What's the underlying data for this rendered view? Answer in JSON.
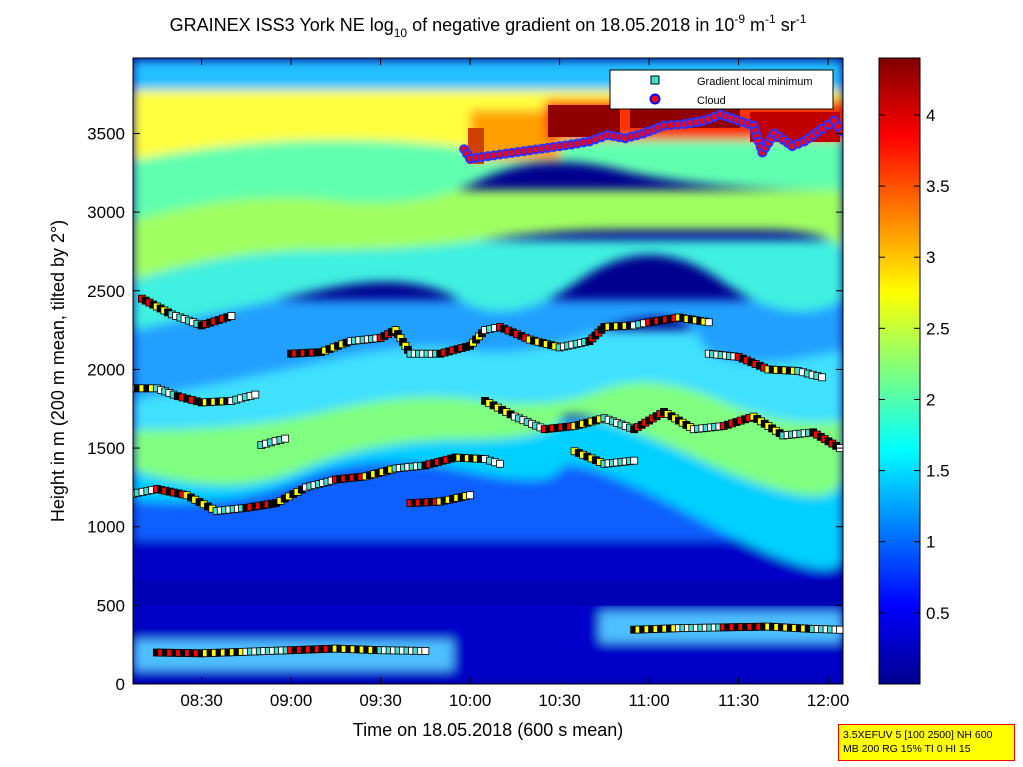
{
  "chart_data": {
    "type": "heatmap",
    "title_parts": [
      "GRAINEX ISS3 York NE log",
      "10",
      " of negative gradient on 18.05.2018 in 10",
      "-9",
      " m",
      "-1",
      " sr",
      "-1"
    ],
    "xlabel": "Time on 18.05.2018 (600 s mean)",
    "ylabel": "Height in m (200 m mean, tilted by 2°)",
    "x_range": [
      "08:07",
      "12:05"
    ],
    "ylim": [
      0,
      3980
    ],
    "x_ticks": [
      "08:30",
      "09:00",
      "09:30",
      "10:00",
      "10:30",
      "11:00",
      "11:30",
      "12:00"
    ],
    "y_ticks": [
      0,
      500,
      1000,
      1500,
      2000,
      2500,
      3000,
      3500
    ],
    "colorbar": {
      "range": [
        0,
        4.4
      ],
      "ticks": [
        0.5,
        1,
        1.5,
        2,
        2.5,
        3,
        3.5,
        4
      ],
      "colormap": "jet"
    },
    "legend": {
      "placement": "top-right",
      "entries": [
        {
          "label": "Gradient local minimum",
          "marker": "square",
          "color": "#40e0d0"
        },
        {
          "label": "Cloud",
          "marker": "circle",
          "color": "#ff0000",
          "edge": "#0000ff"
        }
      ]
    },
    "layers": [
      {
        "name": "",
        "points": [
          [
            "08:15",
            200
          ],
          [
            "08:30",
            195
          ],
          [
            "08:45",
            205
          ],
          [
            "09:00",
            215
          ],
          [
            "09:15",
            225
          ],
          [
            "09:30",
            215
          ],
          [
            "09:45",
            210
          ]
        ]
      },
      {
        "name": "",
        "points": [
          [
            "10:55",
            345
          ],
          [
            "11:10",
            355
          ],
          [
            "11:25",
            360
          ],
          [
            "11:40",
            365
          ],
          [
            "11:55",
            350
          ],
          [
            "12:04",
            345
          ]
        ]
      },
      {
        "name": "",
        "points": [
          [
            "08:07",
            1210
          ],
          [
            "08:15",
            1240
          ],
          [
            "08:25",
            1200
          ],
          [
            "08:35",
            1100
          ],
          [
            "08:45",
            1120
          ],
          [
            "08:55",
            1150
          ],
          [
            "09:05",
            1250
          ],
          [
            "09:15",
            1300
          ],
          [
            "09:25",
            1320
          ],
          [
            "09:35",
            1370
          ],
          [
            "09:45",
            1390
          ],
          [
            "09:55",
            1440
          ],
          [
            "10:05",
            1430
          ],
          [
            "10:10",
            1400
          ]
        ]
      },
      {
        "name": "",
        "points": [
          [
            "09:40",
            1150
          ],
          [
            "09:50",
            1160
          ],
          [
            "10:00",
            1200
          ]
        ]
      },
      {
        "name": "",
        "points": [
          [
            "08:07",
            1880
          ],
          [
            "08:15",
            1880
          ],
          [
            "08:22",
            1830
          ],
          [
            "08:30",
            1790
          ],
          [
            "08:40",
            1800
          ],
          [
            "08:48",
            1840
          ]
        ]
      },
      {
        "name": "",
        "points": [
          [
            "08:50",
            1520
          ],
          [
            "08:58",
            1560
          ]
        ]
      },
      {
        "name": "",
        "points": [
          [
            "09:00",
            2100
          ],
          [
            "09:10",
            2110
          ],
          [
            "09:20",
            2180
          ],
          [
            "09:30",
            2200
          ],
          [
            "09:35",
            2250
          ],
          [
            "09:40",
            2100
          ],
          [
            "09:50",
            2100
          ],
          [
            "10:00",
            2150
          ],
          [
            "10:05",
            2250
          ],
          [
            "10:10",
            2270
          ],
          [
            "10:20",
            2190
          ],
          [
            "10:30",
            2140
          ],
          [
            "10:40",
            2180
          ],
          [
            "10:45",
            2270
          ],
          [
            "10:55",
            2280
          ],
          [
            "11:00",
            2300
          ],
          [
            "11:10",
            2330
          ],
          [
            "11:20",
            2300
          ]
        ]
      },
      {
        "name": "",
        "points": [
          [
            "10:05",
            1800
          ],
          [
            "10:15",
            1700
          ],
          [
            "10:25",
            1620
          ],
          [
            "10:35",
            1640
          ],
          [
            "10:45",
            1690
          ],
          [
            "10:55",
            1620
          ],
          [
            "11:05",
            1730
          ],
          [
            "11:15",
            1620
          ],
          [
            "11:25",
            1640
          ],
          [
            "11:35",
            1700
          ],
          [
            "11:45",
            1580
          ],
          [
            "11:55",
            1600
          ],
          [
            "12:04",
            1500
          ]
        ]
      },
      {
        "name": "",
        "points": [
          [
            "11:20",
            2100
          ],
          [
            "11:30",
            2080
          ],
          [
            "11:40",
            2000
          ],
          [
            "11:50",
            1990
          ],
          [
            "11:58",
            1950
          ]
        ]
      },
      {
        "name": "",
        "points": [
          [
            "08:10",
            2450
          ],
          [
            "08:15",
            2400
          ],
          [
            "08:20",
            2350
          ],
          [
            "08:30",
            2280
          ],
          [
            "08:40",
            2340
          ]
        ]
      },
      {
        "name": "",
        "points": [
          [
            "10:35",
            1480
          ],
          [
            "10:45",
            1400
          ],
          [
            "10:55",
            1420
          ]
        ]
      }
    ],
    "cloud_points": [
      [
        "09:58",
        3400
      ],
      [
        "10:00",
        3340
      ],
      [
        "10:34",
        3430
      ],
      [
        "10:40",
        3450
      ],
      [
        "10:46",
        3490
      ],
      [
        "10:52",
        3470
      ],
      [
        "10:58",
        3500
      ],
      [
        "11:05",
        3550
      ],
      [
        "11:12",
        3560
      ],
      [
        "11:18",
        3580
      ],
      [
        "11:24",
        3620
      ],
      [
        "11:35",
        3550
      ],
      [
        "11:38",
        3380
      ],
      [
        "11:42",
        3500
      ],
      [
        "11:48",
        3420
      ],
      [
        "11:52",
        3450
      ],
      [
        "11:58",
        3530
      ],
      [
        "12:02",
        3580
      ],
      [
        "12:05",
        3510
      ]
    ]
  },
  "stamp_lines": [
    "3.5XEFUV 5 [100 2500] NH 600",
    "MB 200 RG 15% TI 0 HI 15"
  ]
}
